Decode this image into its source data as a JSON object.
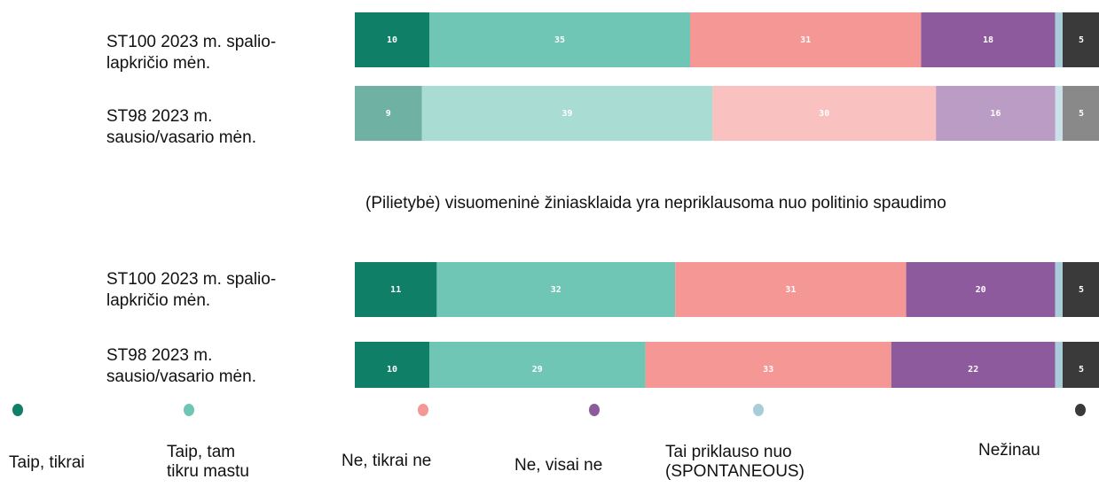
{
  "chart_data": {
    "type": "stacked-bar",
    "subtitle": "(Pilietybė) visuomeninė žiniasklaida yra nepriklausoma nuo politinio spaudimo",
    "categories": [
      "ST100 2023 m. spalio-lapkričio mėn.",
      "ST98 2023 m. sausio/vasario mėn.",
      "ST100 2023 m. spalio-lapkričio mėn.",
      "ST98 2023 m. sausio/vasario mėn."
    ],
    "row_opacity": [
      1,
      0.6,
      1,
      1
    ],
    "xlim": [
      0,
      100
    ],
    "series": [
      {
        "name": "Taip, tikrai",
        "color": "#0f7f68",
        "values": [
          10,
          9,
          11,
          10
        ]
      },
      {
        "name": "Taip, tam tikru mastu",
        "color": "#6fc6b5",
        "values": [
          35,
          39,
          32,
          29
        ]
      },
      {
        "name": "Ne, tikrai ne",
        "color": "#f59794",
        "values": [
          31,
          30,
          31,
          33
        ]
      },
      {
        "name": "Ne, visai ne",
        "color": "#8e5a9e",
        "values": [
          18,
          16,
          20,
          22
        ]
      },
      {
        "name": "Tai priklauso nuo (SPONTANEOUS)",
        "color": "#a8cdd8",
        "values": [
          1,
          1,
          1,
          1
        ],
        "value_labels": [
          null,
          null,
          null,
          null
        ]
      },
      {
        "name": "Nežinau",
        "color": "#3a3a3a",
        "values": [
          5,
          5,
          5,
          5
        ]
      }
    ]
  }
}
